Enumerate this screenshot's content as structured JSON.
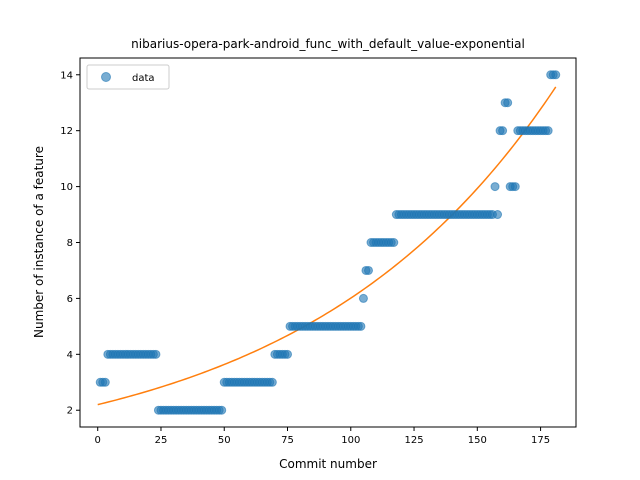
{
  "chart_data": {
    "type": "scatter",
    "title": "nibarius-opera-park-android_func_with_default_value-exponential",
    "xlabel": "Commit number",
    "ylabel": "Number of instance of a feature",
    "xlim": [
      -7,
      189
    ],
    "ylim": [
      1.4,
      14.6
    ],
    "x_ticks": [
      0,
      25,
      50,
      75,
      100,
      125,
      150,
      175
    ],
    "y_ticks": [
      2,
      4,
      6,
      8,
      10,
      12,
      14
    ],
    "legend": {
      "placement": "top-left",
      "entries": [
        "data"
      ]
    },
    "grid": false,
    "colors": {
      "points": "#1f77b4",
      "fit": "#ff7f0e"
    },
    "series": [
      {
        "name": "data",
        "kind": "points",
        "segments": [
          {
            "y": 3,
            "x_from": 1,
            "x_to": 3
          },
          {
            "y": 4,
            "x_from": 4,
            "x_to": 23
          },
          {
            "y": 2,
            "x_from": 24,
            "x_to": 49
          },
          {
            "y": 3,
            "x_from": 50,
            "x_to": 69
          },
          {
            "y": 4,
            "x_from": 70,
            "x_to": 75
          },
          {
            "y": 5,
            "x_from": 76,
            "x_to": 104
          },
          {
            "y": 6,
            "x_from": 105,
            "x_to": 105
          },
          {
            "y": 7,
            "x_from": 106,
            "x_to": 107
          },
          {
            "y": 8,
            "x_from": 108,
            "x_to": 117
          },
          {
            "y": 9,
            "x_from": 118,
            "x_to": 156
          },
          {
            "y": 10,
            "x_from": 157,
            "x_to": 157
          },
          {
            "y": 9,
            "x_from": 158,
            "x_to": 158
          },
          {
            "y": 12,
            "x_from": 159,
            "x_to": 160
          },
          {
            "y": 13,
            "x_from": 161,
            "x_to": 162
          },
          {
            "y": 10,
            "x_from": 163,
            "x_to": 165
          },
          {
            "y": 12,
            "x_from": 166,
            "x_to": 178
          },
          {
            "y": 14,
            "x_from": 179,
            "x_to": 181
          }
        ]
      },
      {
        "name": "",
        "kind": "line",
        "model": "exponential",
        "a": 2.2,
        "b": 0.01005,
        "x_range": [
          0,
          181
        ]
      }
    ]
  }
}
